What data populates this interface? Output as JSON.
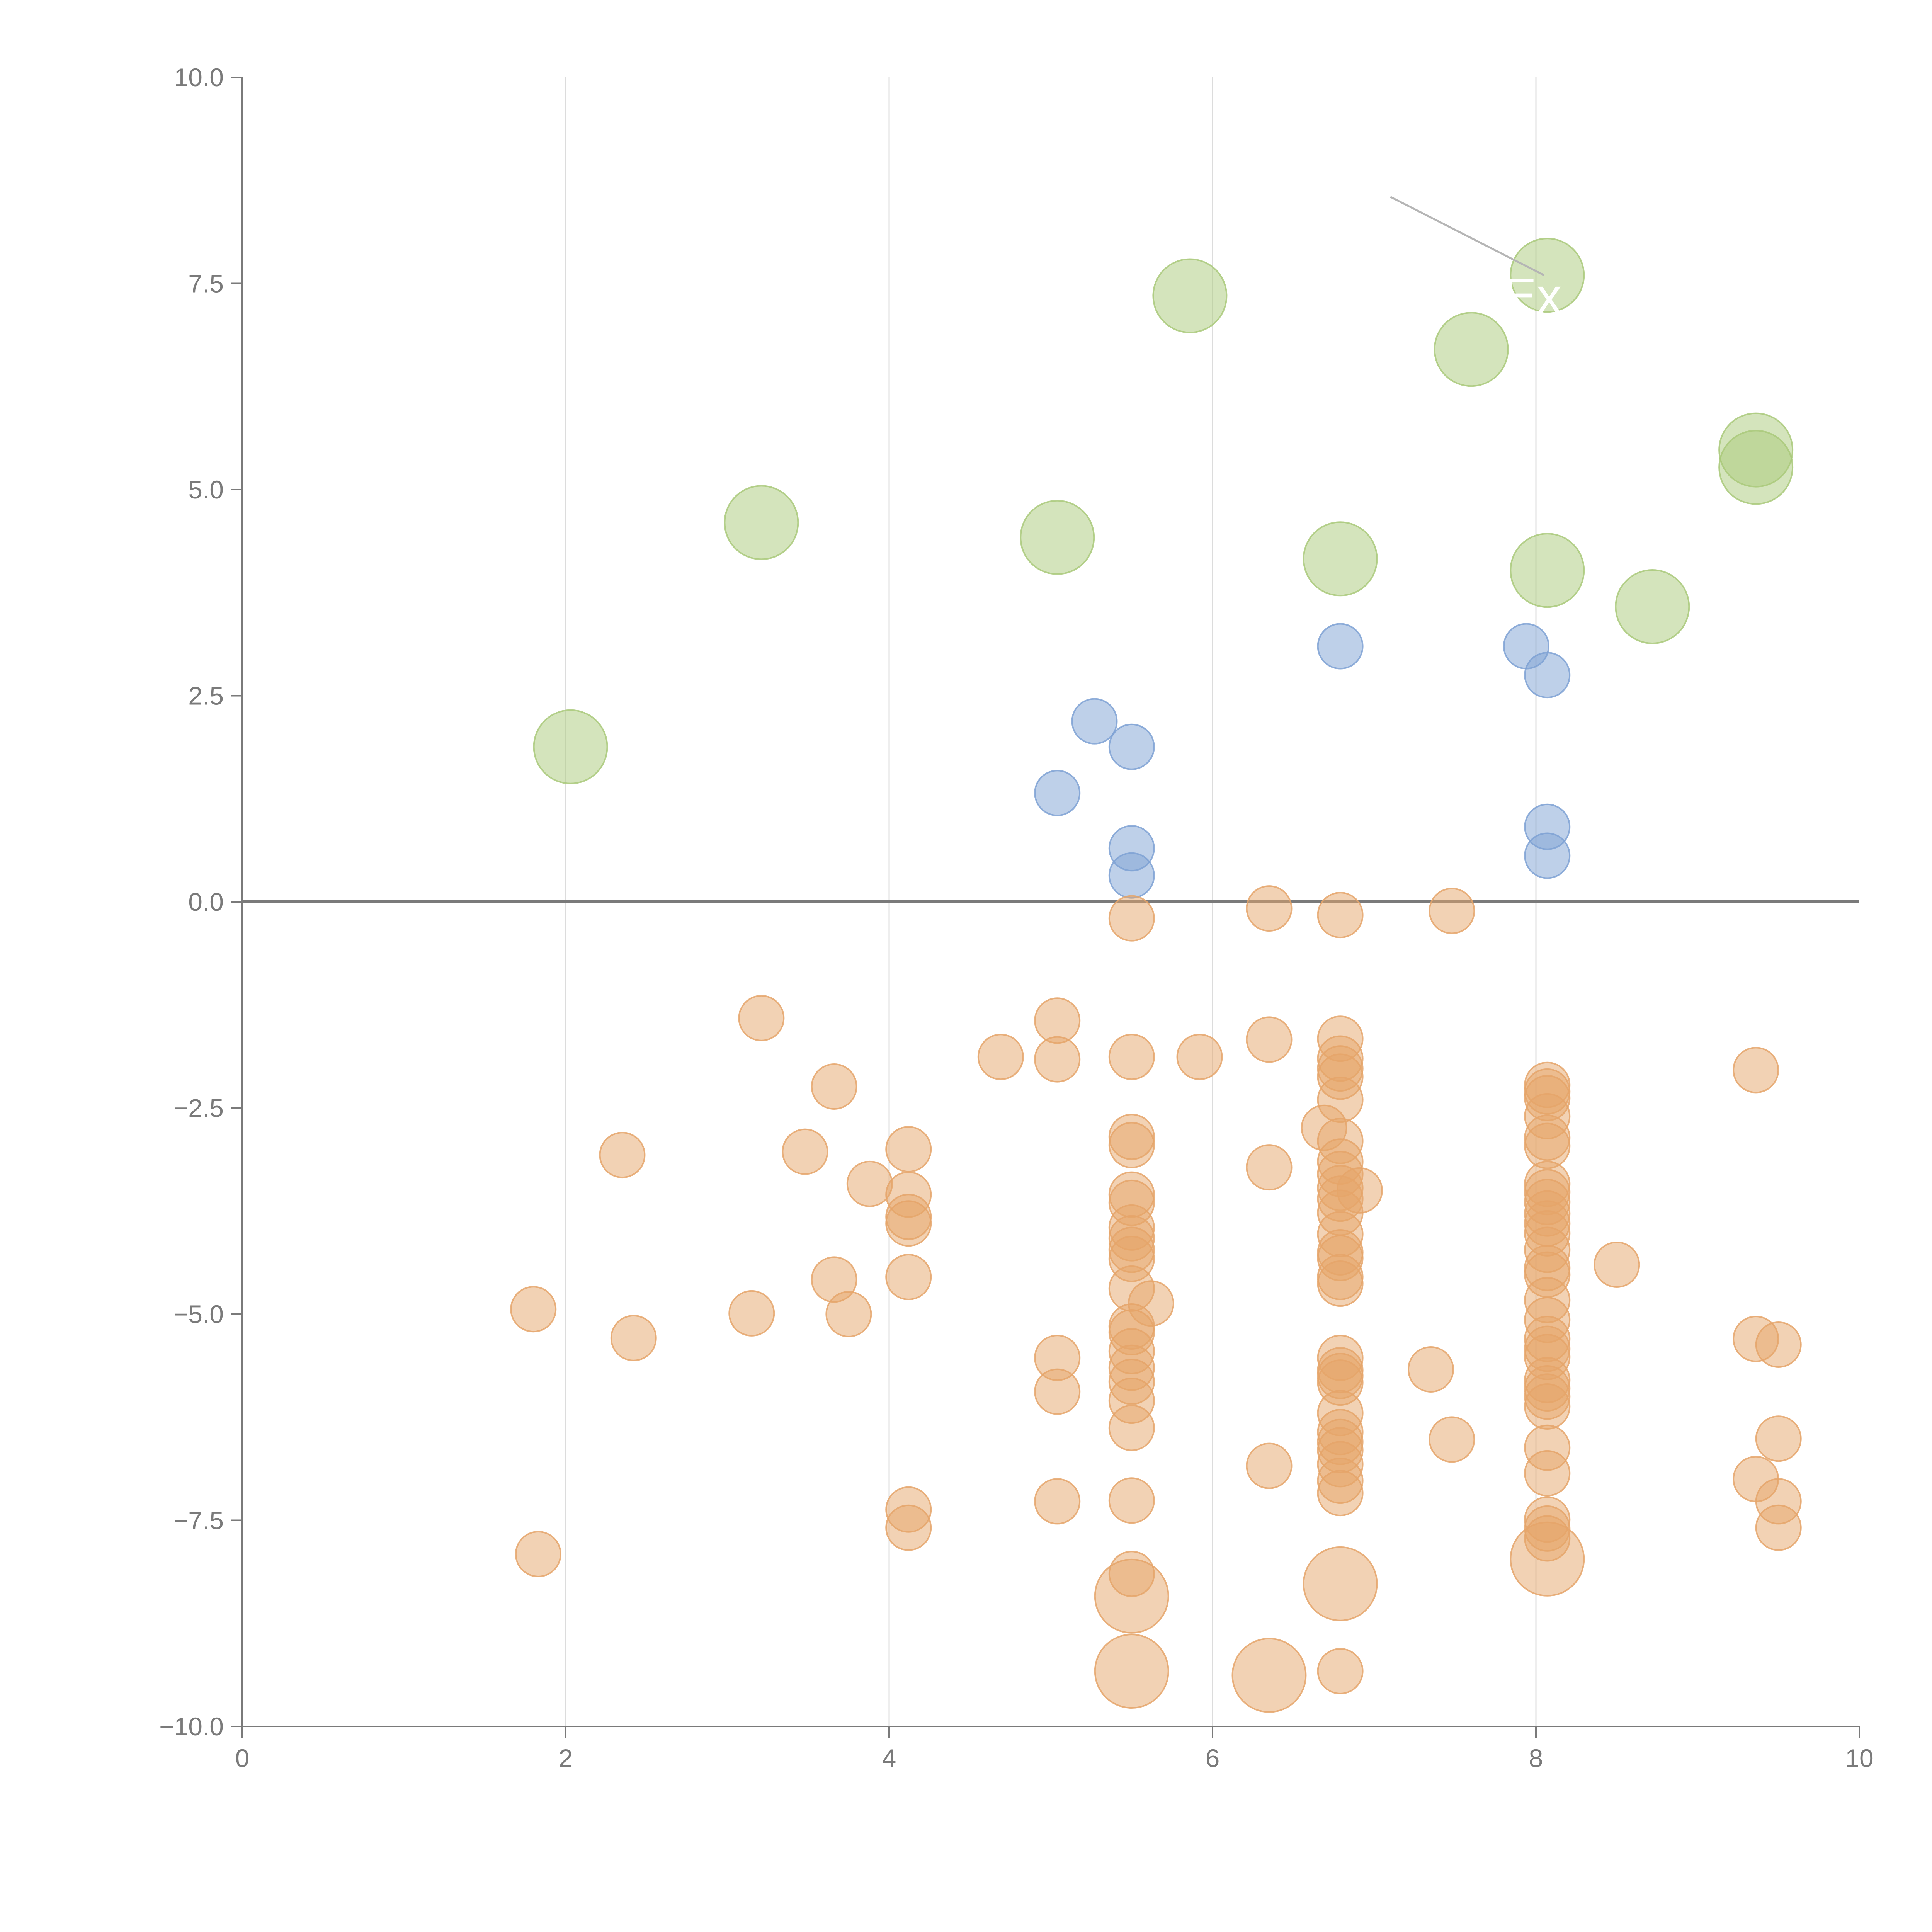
{
  "chart_data": {
    "type": "scatter",
    "title": "",
    "xlabel": "",
    "ylabel": "",
    "xlim": [
      0,
      10
    ],
    "ylim": [
      -10,
      10
    ],
    "x_ticks": [
      0,
      2,
      4,
      6,
      8,
      10
    ],
    "x_tick_labels": [
      "0",
      "2",
      "4",
      "6",
      "8",
      "10"
    ],
    "y_ticks": [
      -10,
      -7.5,
      -5,
      -2.5,
      0,
      2.5,
      5,
      7.5,
      10
    ],
    "y_tick_labels": [
      "−10.0",
      "−7.5",
      "−5.0",
      "−2.5",
      "0.0",
      "2.5",
      "5.0",
      "7.5",
      "10.0"
    ],
    "vertical_gridlines_at": [
      2,
      4,
      6,
      8
    ],
    "zero_line": 0,
    "colors": {
      "green": "#a9c97a",
      "blue": "#7ea1d3",
      "orange": "#e5a56a",
      "axis": "#7a7a7a",
      "grid": "#dcdcdc",
      "zero_line": "#7a7a7a",
      "annotation_line": "#b5b5b5"
    },
    "annotation": {
      "label": "Ex",
      "x": 8.05,
      "y": 7.35,
      "line_from": [
        7.1,
        8.55
      ],
      "line_to": [
        8.05,
        7.6
      ]
    },
    "series": [
      {
        "name": "green",
        "color_key": "green",
        "size": "large",
        "points": [
          [
            2.03,
            1.88
          ],
          [
            3.21,
            4.6
          ],
          [
            5.04,
            4.42
          ],
          [
            5.86,
            7.35
          ],
          [
            6.79,
            4.16
          ],
          [
            7.6,
            6.7
          ],
          [
            8.07,
            7.6
          ],
          [
            8.07,
            4.02
          ],
          [
            8.72,
            3.58
          ],
          [
            9.36,
            5.48
          ],
          [
            9.36,
            5.27
          ]
        ]
      },
      {
        "name": "blue",
        "color_key": "blue",
        "size": "small",
        "points": [
          [
            5.04,
            1.32
          ],
          [
            5.27,
            2.19
          ],
          [
            5.5,
            1.88
          ],
          [
            5.5,
            0.65
          ],
          [
            5.5,
            0.32
          ],
          [
            6.79,
            3.1
          ],
          [
            7.94,
            3.1
          ],
          [
            8.07,
            2.75
          ],
          [
            8.07,
            0.91
          ],
          [
            8.07,
            0.56
          ]
        ]
      },
      {
        "name": "orange",
        "color_key": "orange",
        "size": "small",
        "points": [
          [
            5.5,
            -0.2
          ],
          [
            6.35,
            -0.08
          ],
          [
            6.79,
            -0.16
          ],
          [
            7.48,
            -0.11
          ],
          [
            3.21,
            -1.41
          ],
          [
            5.04,
            -1.44
          ],
          [
            6.35,
            -1.67
          ],
          [
            6.79,
            -1.66
          ],
          [
            4.69,
            -1.88
          ],
          [
            5.04,
            -1.91
          ],
          [
            5.5,
            -1.88
          ],
          [
            5.92,
            -1.88
          ],
          [
            3.66,
            -2.24
          ],
          [
            6.79,
            -1.9
          ],
          [
            6.79,
            -2.02
          ],
          [
            6.79,
            -2.12
          ],
          [
            6.79,
            -2.4
          ],
          [
            8.07,
            -2.22
          ],
          [
            8.07,
            -2.3
          ],
          [
            8.07,
            -2.38
          ],
          [
            8.07,
            -2.6
          ],
          [
            8.07,
            -2.86
          ],
          [
            8.07,
            -2.96
          ],
          [
            9.36,
            -2.04
          ],
          [
            2.35,
            -3.07
          ],
          [
            3.48,
            -3.03
          ],
          [
            4.12,
            -3.0
          ],
          [
            3.88,
            -3.42
          ],
          [
            5.5,
            -2.85
          ],
          [
            5.5,
            -2.95
          ],
          [
            6.35,
            -3.22
          ],
          [
            6.69,
            -2.74
          ],
          [
            6.79,
            -2.9
          ],
          [
            6.79,
            -3.15
          ],
          [
            6.79,
            -3.3
          ],
          [
            6.79,
            -3.47
          ],
          [
            6.91,
            -3.5
          ],
          [
            6.79,
            -3.6
          ],
          [
            6.79,
            -3.77
          ],
          [
            4.12,
            -3.55
          ],
          [
            4.12,
            -3.82
          ],
          [
            4.12,
            -3.9
          ],
          [
            5.5,
            -3.55
          ],
          [
            5.5,
            -3.65
          ],
          [
            5.5,
            -3.95
          ],
          [
            5.5,
            -4.08
          ],
          [
            5.5,
            -4.22
          ],
          [
            5.5,
            -4.33
          ],
          [
            6.79,
            -4.03
          ],
          [
            6.79,
            -4.25
          ],
          [
            6.79,
            -4.32
          ],
          [
            6.79,
            -4.55
          ],
          [
            6.79,
            -4.63
          ],
          [
            8.07,
            -3.42
          ],
          [
            8.07,
            -3.52
          ],
          [
            8.07,
            -3.64
          ],
          [
            8.07,
            -3.78
          ],
          [
            8.07,
            -3.9
          ],
          [
            8.07,
            -4.02
          ],
          [
            8.07,
            -4.22
          ],
          [
            8.07,
            -4.44
          ],
          [
            8.07,
            -4.52
          ],
          [
            8.5,
            -4.4
          ],
          [
            3.66,
            -4.58
          ],
          [
            4.12,
            -4.55
          ],
          [
            5.5,
            -4.69
          ],
          [
            5.62,
            -4.87
          ],
          [
            8.07,
            -4.83
          ],
          [
            1.8,
            -4.94
          ],
          [
            2.42,
            -5.29
          ],
          [
            3.15,
            -4.99
          ],
          [
            3.75,
            -5.0
          ],
          [
            5.5,
            -5.15
          ],
          [
            5.5,
            -5.22
          ],
          [
            5.5,
            -5.45
          ],
          [
            5.5,
            -5.65
          ],
          [
            5.5,
            -5.82
          ],
          [
            5.5,
            -6.05
          ],
          [
            5.04,
            -5.53
          ],
          [
            5.04,
            -5.94
          ],
          [
            5.5,
            -6.38
          ],
          [
            6.79,
            -5.53
          ],
          [
            6.79,
            -5.68
          ],
          [
            6.79,
            -5.75
          ],
          [
            6.79,
            -5.83
          ],
          [
            6.79,
            -6.2
          ],
          [
            6.79,
            -6.43
          ],
          [
            6.79,
            -6.55
          ],
          [
            6.79,
            -6.65
          ],
          [
            6.79,
            -6.82
          ],
          [
            6.79,
            -7.02
          ],
          [
            6.79,
            -7.17
          ],
          [
            7.35,
            -5.67
          ],
          [
            7.48,
            -6.52
          ],
          [
            8.07,
            -5.07
          ],
          [
            8.07,
            -5.3
          ],
          [
            8.07,
            -5.42
          ],
          [
            8.07,
            -5.52
          ],
          [
            8.07,
            -5.8
          ],
          [
            8.07,
            -5.9
          ],
          [
            8.07,
            -6.0
          ],
          [
            8.07,
            -6.12
          ],
          [
            8.07,
            -6.62
          ],
          [
            8.07,
            -6.93
          ],
          [
            9.36,
            -5.3
          ],
          [
            9.5,
            -5.37
          ],
          [
            9.5,
            -6.51
          ],
          [
            9.36,
            -7.0
          ],
          [
            9.5,
            -7.27
          ],
          [
            9.5,
            -7.59
          ],
          [
            6.35,
            -6.84
          ],
          [
            4.12,
            -7.37
          ],
          [
            4.12,
            -7.59
          ],
          [
            5.04,
            -7.27
          ],
          [
            5.5,
            -7.26
          ],
          [
            8.07,
            -7.49
          ],
          [
            8.07,
            -7.6
          ],
          [
            8.07,
            -7.72
          ],
          [
            1.83,
            -7.91
          ],
          [
            5.5,
            -8.15
          ],
          [
            6.79,
            -9.33
          ]
        ]
      },
      {
        "name": "orange-large",
        "color_key": "orange",
        "size": "large",
        "points": [
          [
            5.5,
            -8.42
          ],
          [
            5.5,
            -9.33
          ],
          [
            6.35,
            -9.38
          ],
          [
            6.79,
            -8.27
          ],
          [
            8.07,
            -7.97
          ]
        ]
      }
    ]
  }
}
